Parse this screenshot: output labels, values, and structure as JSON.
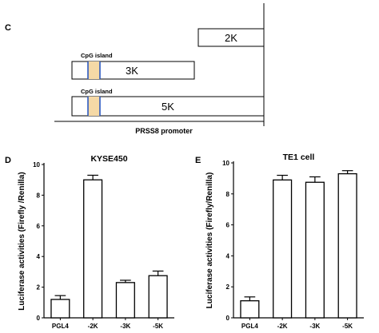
{
  "panels": {
    "c": "C",
    "d": "D",
    "e": "E"
  },
  "promoter": {
    "axis_label": "PRSS8 promoter",
    "constructs": [
      {
        "label": "2K",
        "cpg": ""
      },
      {
        "label": "3K",
        "cpg": "CpG island"
      },
      {
        "label": "5K",
        "cpg": "CpG island"
      }
    ]
  },
  "chart_data": [
    {
      "type": "bar",
      "title": "KYSE450",
      "ylabel": "Luciferase activities (Firefly /Renilla)",
      "categories": [
        "PGL4",
        "-2K",
        "-3K",
        "-5K"
      ],
      "values": [
        1.2,
        9.0,
        2.3,
        2.75
      ],
      "errors": [
        0.25,
        0.3,
        0.15,
        0.3
      ],
      "ylim": [
        0,
        10
      ],
      "yticks": [
        "0",
        "2",
        "4",
        "6",
        "8",
        "10"
      ]
    },
    {
      "type": "bar",
      "title": "TE1 cell",
      "ylabel": "Luciferase activities (Firefly/Renilla)",
      "categories": [
        "PGL4",
        "-2K",
        "-3K",
        "-5K"
      ],
      "values": [
        1.1,
        8.9,
        8.75,
        9.3
      ],
      "errors": [
        0.25,
        0.3,
        0.35,
        0.2
      ],
      "ylim": [
        0,
        10
      ],
      "yticks": [
        "0",
        "2",
        "4",
        "6",
        "8",
        "10"
      ]
    }
  ]
}
